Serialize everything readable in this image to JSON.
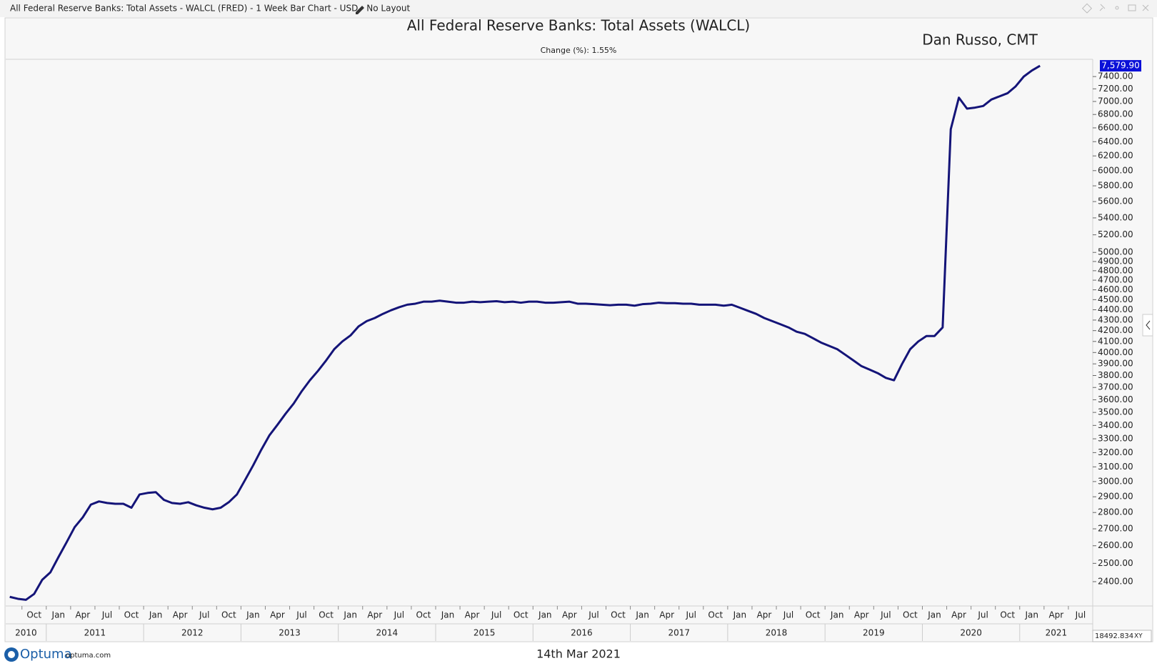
{
  "window": {
    "title": "All Federal Reserve Banks: Total Assets - WALCL (FRED) - 1 Week Bar Chart - USD - No Layout"
  },
  "footer": {
    "brand": "Optuma",
    "site": "optuma.com",
    "date": "14th Mar 2021",
    "scale_value": "18492.834",
    "scale_mode": "XY"
  },
  "chart_data": {
    "type": "line",
    "title": "All Federal Reserve Banks: Total Assets (WALCL)",
    "subtitle": "Change (%): 1.55%",
    "author": "Dan Russo, CMT",
    "log_scale": true,
    "grid": false,
    "x": [
      "2010-08",
      "2010-09",
      "2010-10",
      "2010-11",
      "2010-12",
      "2011-01",
      "2011-02",
      "2011-03",
      "2011-04",
      "2011-05",
      "2011-06",
      "2011-07",
      "2011-08",
      "2011-09",
      "2011-10",
      "2011-11",
      "2011-12",
      "2012-01",
      "2012-02",
      "2012-03",
      "2012-04",
      "2012-05",
      "2012-06",
      "2012-07",
      "2012-08",
      "2012-09",
      "2012-10",
      "2012-11",
      "2012-12",
      "2013-01",
      "2013-02",
      "2013-03",
      "2013-04",
      "2013-05",
      "2013-06",
      "2013-07",
      "2013-08",
      "2013-09",
      "2013-10",
      "2013-11",
      "2013-12",
      "2014-01",
      "2014-02",
      "2014-03",
      "2014-04",
      "2014-05",
      "2014-06",
      "2014-07",
      "2014-08",
      "2014-09",
      "2014-10",
      "2014-11",
      "2014-12",
      "2015-01",
      "2015-02",
      "2015-03",
      "2015-04",
      "2015-05",
      "2015-06",
      "2015-07",
      "2015-08",
      "2015-09",
      "2015-10",
      "2015-11",
      "2015-12",
      "2016-01",
      "2016-02",
      "2016-03",
      "2016-04",
      "2016-05",
      "2016-06",
      "2016-07",
      "2016-08",
      "2016-09",
      "2016-10",
      "2016-11",
      "2016-12",
      "2017-01",
      "2017-02",
      "2017-03",
      "2017-04",
      "2017-05",
      "2017-06",
      "2017-07",
      "2017-08",
      "2017-09",
      "2017-10",
      "2017-11",
      "2017-12",
      "2018-01",
      "2018-02",
      "2018-03",
      "2018-04",
      "2018-05",
      "2018-06",
      "2018-07",
      "2018-08",
      "2018-09",
      "2018-10",
      "2018-11",
      "2018-12",
      "2019-01",
      "2019-02",
      "2019-03",
      "2019-04",
      "2019-05",
      "2019-06",
      "2019-07",
      "2019-08",
      "2019-09",
      "2019-10",
      "2019-11",
      "2019-12",
      "2020-01",
      "2020-02",
      "2020-03",
      "2020-04",
      "2020-05",
      "2020-06",
      "2020-07",
      "2020-08",
      "2020-09",
      "2020-10",
      "2020-11",
      "2020-12",
      "2021-01",
      "2021-02",
      "2021-03"
    ],
    "series": [
      {
        "name": "WALCL",
        "color": "#141478",
        "values": [
          2320,
          2310,
          2305,
          2335,
          2410,
          2450,
          2535,
          2620,
          2710,
          2770,
          2850,
          2870,
          2860,
          2855,
          2855,
          2830,
          2915,
          2925,
          2930,
          2880,
          2860,
          2855,
          2865,
          2845,
          2830,
          2820,
          2830,
          2865,
          2915,
          3010,
          3110,
          3220,
          3325,
          3405,
          3490,
          3570,
          3670,
          3760,
          3840,
          3930,
          4030,
          4100,
          4155,
          4240,
          4290,
          4320,
          4360,
          4395,
          4425,
          4450,
          4460,
          4480,
          4480,
          4490,
          4480,
          4470,
          4470,
          4480,
          4475,
          4480,
          4485,
          4475,
          4480,
          4470,
          4480,
          4480,
          4470,
          4470,
          4475,
          4480,
          4460,
          4460,
          4455,
          4450,
          4445,
          4450,
          4450,
          4440,
          4455,
          4460,
          4470,
          4465,
          4465,
          4460,
          4460,
          4450,
          4450,
          4450,
          4440,
          4450,
          4420,
          4390,
          4360,
          4320,
          4290,
          4260,
          4230,
          4190,
          4170,
          4130,
          4090,
          4060,
          4030,
          3980,
          3930,
          3880,
          3850,
          3820,
          3780,
          3760,
          3900,
          4030,
          4100,
          4150,
          4150,
          4230,
          6580,
          7060,
          6890,
          6905,
          6930,
          7030,
          7080,
          7130,
          7240,
          7400,
          7500,
          7579.9
        ],
        "value_labels": [
          null,
          null,
          null,
          null,
          null,
          null,
          null,
          null,
          null,
          null,
          null,
          null,
          null,
          null,
          null,
          null,
          null,
          null,
          null,
          null,
          null,
          null,
          null,
          null,
          null,
          null,
          null,
          null,
          null,
          null,
          null,
          null,
          null,
          null,
          null,
          null,
          null,
          null,
          null,
          null,
          null,
          null,
          null,
          null,
          null,
          null,
          null,
          null,
          null,
          null,
          null,
          null,
          null,
          null,
          null,
          null,
          null,
          null,
          null,
          null,
          null,
          null,
          null,
          null,
          null,
          null,
          null,
          null,
          null,
          null,
          null,
          null,
          null,
          null,
          null,
          null,
          null,
          null,
          null,
          null,
          null,
          null,
          null,
          null,
          null,
          null,
          null,
          null,
          null,
          null,
          null,
          null,
          null,
          null,
          null,
          null,
          null,
          null,
          null,
          null,
          null,
          null,
          null,
          null,
          null,
          null,
          null,
          null,
          null,
          null,
          null,
          null,
          null,
          null,
          null,
          null,
          null,
          null,
          null,
          null,
          null,
          null,
          null,
          null,
          null,
          null,
          null,
          "7,579.90"
        ]
      }
    ],
    "xlim": [
      "2010-08",
      "2021-10"
    ],
    "xticks": [
      {
        "value": "2010-10",
        "label": "Oct"
      },
      {
        "value": "2011-01",
        "label": "Jan"
      },
      {
        "value": "2011-04",
        "label": "Apr"
      },
      {
        "value": "2011-07",
        "label": "Jul"
      },
      {
        "value": "2011-10",
        "label": "Oct"
      },
      {
        "value": "2012-01",
        "label": "Jan"
      },
      {
        "value": "2012-04",
        "label": "Apr"
      },
      {
        "value": "2012-07",
        "label": "Jul"
      },
      {
        "value": "2012-10",
        "label": "Oct"
      },
      {
        "value": "2013-01",
        "label": "Jan"
      },
      {
        "value": "2013-04",
        "label": "Apr"
      },
      {
        "value": "2013-07",
        "label": "Jul"
      },
      {
        "value": "2013-10",
        "label": "Oct"
      },
      {
        "value": "2014-01",
        "label": "Jan"
      },
      {
        "value": "2014-04",
        "label": "Apr"
      },
      {
        "value": "2014-07",
        "label": "Jul"
      },
      {
        "value": "2014-10",
        "label": "Oct"
      },
      {
        "value": "2015-01",
        "label": "Jan"
      },
      {
        "value": "2015-04",
        "label": "Apr"
      },
      {
        "value": "2015-07",
        "label": "Jul"
      },
      {
        "value": "2015-10",
        "label": "Oct"
      },
      {
        "value": "2016-01",
        "label": "Jan"
      },
      {
        "value": "2016-04",
        "label": "Apr"
      },
      {
        "value": "2016-07",
        "label": "Jul"
      },
      {
        "value": "2016-10",
        "label": "Oct"
      },
      {
        "value": "2017-01",
        "label": "Jan"
      },
      {
        "value": "2017-04",
        "label": "Apr"
      },
      {
        "value": "2017-07",
        "label": "Jul"
      },
      {
        "value": "2017-10",
        "label": "Oct"
      },
      {
        "value": "2018-01",
        "label": "Jan"
      },
      {
        "value": "2018-04",
        "label": "Apr"
      },
      {
        "value": "2018-07",
        "label": "Jul"
      },
      {
        "value": "2018-10",
        "label": "Oct"
      },
      {
        "value": "2019-01",
        "label": "Jan"
      },
      {
        "value": "2019-04",
        "label": "Apr"
      },
      {
        "value": "2019-07",
        "label": "Jul"
      },
      {
        "value": "2019-10",
        "label": "Oct"
      },
      {
        "value": "2020-01",
        "label": "Jan"
      },
      {
        "value": "2020-04",
        "label": "Apr"
      },
      {
        "value": "2020-07",
        "label": "Jul"
      },
      {
        "value": "2020-10",
        "label": "Oct"
      },
      {
        "value": "2021-01",
        "label": "Jan"
      },
      {
        "value": "2021-04",
        "label": "Apr"
      },
      {
        "value": "2021-07",
        "label": "Jul"
      }
    ],
    "year_ticks": [
      "2010",
      "2011",
      "2012",
      "2013",
      "2014",
      "2015",
      "2016",
      "2017",
      "2018",
      "2019",
      "2020",
      "2021"
    ],
    "ylim": [
      2277,
      7690
    ],
    "yticks": [
      {
        "value": 2400,
        "label": "2400.00"
      },
      {
        "value": 2500,
        "label": "2500.00"
      },
      {
        "value": 2600,
        "label": "2600.00"
      },
      {
        "value": 2700,
        "label": "2700.00"
      },
      {
        "value": 2800,
        "label": "2800.00"
      },
      {
        "value": 2900,
        "label": "2900.00"
      },
      {
        "value": 3000,
        "label": "3000.00"
      },
      {
        "value": 3100,
        "label": "3100.00"
      },
      {
        "value": 3200,
        "label": "3200.00"
      },
      {
        "value": 3300,
        "label": "3300.00"
      },
      {
        "value": 3400,
        "label": "3400.00"
      },
      {
        "value": 3500,
        "label": "3500.00"
      },
      {
        "value": 3600,
        "label": "3600.00"
      },
      {
        "value": 3700,
        "label": "3700.00"
      },
      {
        "value": 3800,
        "label": "3800.00"
      },
      {
        "value": 3900,
        "label": "3900.00"
      },
      {
        "value": 4000,
        "label": "4000.00"
      },
      {
        "value": 4100,
        "label": "4100.00"
      },
      {
        "value": 4200,
        "label": "4200.00"
      },
      {
        "value": 4300,
        "label": "4300.00"
      },
      {
        "value": 4400,
        "label": "4400.00"
      },
      {
        "value": 4500,
        "label": "4500.00"
      },
      {
        "value": 4600,
        "label": "4600.00"
      },
      {
        "value": 4700,
        "label": "4700.00"
      },
      {
        "value": 4800,
        "label": "4800.00"
      },
      {
        "value": 4900,
        "label": "4900.00"
      },
      {
        "value": 5000,
        "label": "5000.00"
      },
      {
        "value": 5200,
        "label": "5200.00"
      },
      {
        "value": 5400,
        "label": "5400.00"
      },
      {
        "value": 5600,
        "label": "5600.00"
      },
      {
        "value": 5800,
        "label": "5800.00"
      },
      {
        "value": 6000,
        "label": "6000.00"
      },
      {
        "value": 6200,
        "label": "6200.00"
      },
      {
        "value": 6400,
        "label": "6400.00"
      },
      {
        "value": 6600,
        "label": "6600.00"
      },
      {
        "value": 6800,
        "label": "6800.00"
      },
      {
        "value": 7000,
        "label": "7000.00"
      },
      {
        "value": 7200,
        "label": "7200.00"
      },
      {
        "value": 7400,
        "label": "7400.00"
      }
    ]
  }
}
